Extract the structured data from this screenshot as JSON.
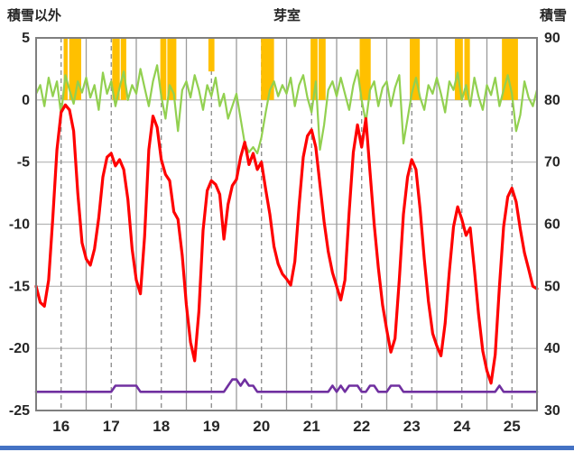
{
  "header": {
    "left_label": "積雪以外",
    "title": "芽室",
    "right_label": "積雪"
  },
  "colors": {
    "red_line": "#ff0000",
    "green_line": "#92d050",
    "purple_line": "#7030a0",
    "sunshine_bar": "#ffc000",
    "grid_h": "#b3b3b3",
    "grid_v_solid": "#9b9b9b",
    "grid_v_dashed": "#808080",
    "border": "#7f7f7f",
    "tick_text": "#262626",
    "scrollbar": "#4472c4"
  },
  "chart_data": {
    "type": "line",
    "title": "芽室",
    "x_domain": [
      16,
      26
    ],
    "x_start": 16,
    "x_step_days": 0.0833333333,
    "x_ticks": [
      16,
      17,
      18,
      19,
      20,
      21,
      22,
      23,
      24,
      25
    ],
    "left_axis": {
      "label": "積雪以外",
      "range": [
        -25,
        5
      ],
      "ticks": [
        5,
        0,
        -5,
        -10,
        -15,
        -20,
        -25
      ]
    },
    "right_axis": {
      "label": "積雪",
      "range": [
        30,
        90
      ],
      "ticks": [
        90,
        80,
        70,
        60,
        50,
        40,
        30
      ]
    },
    "grid": true,
    "legend": "none",
    "bars": {
      "name": "yellow-bars",
      "color": "#ffc000",
      "top": 5,
      "segments": [
        [
          16.55,
          16.63,
          0
        ],
        [
          16.66,
          16.9,
          0
        ],
        [
          17.52,
          17.67,
          0
        ],
        [
          17.69,
          17.8,
          0
        ],
        [
          18.48,
          18.6,
          0
        ],
        [
          18.62,
          18.8,
          0
        ],
        [
          19.44,
          19.56,
          2.3
        ],
        [
          20.49,
          20.75,
          0
        ],
        [
          21.48,
          21.62,
          0
        ],
        [
          21.64,
          21.78,
          0
        ],
        [
          22.46,
          22.68,
          0
        ],
        [
          23.46,
          23.66,
          0
        ],
        [
          24.36,
          24.52,
          0
        ],
        [
          24.55,
          24.66,
          0
        ],
        [
          25.3,
          25.62,
          0
        ]
      ]
    },
    "series": [
      {
        "name": "green-line",
        "axis": "left",
        "color": "#92d050",
        "width": 2.2,
        "values": [
          0.5,
          1.2,
          -0.5,
          1.8,
          0.3,
          1.5,
          -1.2,
          2.0,
          0.8,
          -0.3,
          1.5,
          0.6,
          1.8,
          0.2,
          1.2,
          -0.8,
          2.2,
          0.5,
          1.5,
          -0.5,
          1.0,
          2.3,
          0.0,
          1.2,
          0.5,
          2.5,
          1.0,
          -0.5,
          1.5,
          2.8,
          0.3,
          -1.5,
          1.2,
          0.5,
          -2.5,
          0.8,
          1.5,
          0.2,
          2.0,
          0.8,
          -0.8,
          1.2,
          0.3,
          1.8,
          -0.5,
          0.5,
          -1.5,
          -0.5,
          0.5,
          -1.5,
          -3.5,
          -4.2,
          -3.8,
          -4.3,
          -3.0,
          -1.0,
          0.8,
          1.5,
          0.3,
          1.2,
          0.5,
          1.8,
          -0.5,
          1.2,
          2.0,
          0.2,
          -1.0,
          1.5,
          -4.0,
          -2.0,
          0.8,
          1.5,
          0.3,
          1.8,
          0.5,
          -0.8,
          1.2,
          2.4,
          0.0,
          -1.8,
          0.8,
          1.5,
          -0.5,
          1.0,
          1.5,
          -0.5,
          1.0,
          2.0,
          -3.5,
          -1.5,
          0.5,
          1.8,
          0.2,
          -0.8,
          1.2,
          0.5,
          1.8,
          0.5,
          -1.0,
          1.5,
          0.8,
          2.2,
          0.0,
          1.2,
          -0.5,
          1.8,
          0.3,
          -0.8,
          1.2,
          0.4,
          1.8,
          -0.5,
          0.8,
          2.0,
          0.5,
          -2.5,
          -1.2,
          1.5,
          0.2,
          -0.5,
          0.8
        ]
      },
      {
        "name": "red-line",
        "axis": "left",
        "color": "#ff0000",
        "width": 3.2,
        "values": [
          -15,
          -16.3,
          -16.6,
          -14.5,
          -9.5,
          -4,
          -1,
          -0.4,
          -0.8,
          -2.5,
          -7.5,
          -11.5,
          -12.8,
          -13.3,
          -12,
          -9.5,
          -6.2,
          -4.6,
          -4.3,
          -5.3,
          -4.8,
          -5.6,
          -8,
          -12,
          -14.5,
          -15.6,
          -11,
          -4,
          -1.3,
          -2.2,
          -4.8,
          -6,
          -6.5,
          -9,
          -9.6,
          -12.5,
          -16.5,
          -19.5,
          -21,
          -17,
          -10.5,
          -7.3,
          -6.5,
          -6.8,
          -7.6,
          -11.2,
          -8.4,
          -6.9,
          -6.4,
          -4.6,
          -3.4,
          -5.2,
          -4.3,
          -5.6,
          -5,
          -7.2,
          -9.2,
          -11.8,
          -13.2,
          -14,
          -14.4,
          -14.9,
          -13,
          -8.5,
          -4.6,
          -2.9,
          -2.4,
          -3.8,
          -6.8,
          -9.8,
          -12.2,
          -13.9,
          -15,
          -16.1,
          -14.5,
          -9,
          -4.2,
          -2,
          -3.8,
          -1.5,
          -5.8,
          -10,
          -13.5,
          -16.5,
          -18.5,
          -20.3,
          -19.2,
          -14.5,
          -9.2,
          -6.2,
          -4.8,
          -5.6,
          -8.8,
          -12.8,
          -16.2,
          -18.8,
          -19.8,
          -20.6,
          -18,
          -13.8,
          -10.2,
          -8.6,
          -9.6,
          -10.9,
          -10.3,
          -13.6,
          -17.2,
          -20.2,
          -21.8,
          -22.8,
          -20.5,
          -15,
          -10.2,
          -7.8,
          -7.1,
          -8.2,
          -10.4,
          -12.3,
          -13.6,
          -15,
          -15.2
        ]
      },
      {
        "name": "purple-line",
        "axis": "right",
        "color": "#7030a0",
        "width": 2.6,
        "values": [
          33,
          33,
          33,
          33,
          33,
          33,
          33,
          33,
          33,
          33,
          33,
          33,
          33,
          33,
          33,
          33,
          33,
          33,
          33,
          34,
          34,
          34,
          34,
          34,
          34,
          33,
          33,
          33,
          33,
          33,
          33,
          33,
          33,
          33,
          33,
          33,
          33,
          33,
          33,
          33,
          33,
          33,
          33,
          33,
          33,
          33,
          34,
          35,
          35,
          34,
          35,
          34,
          34,
          33,
          33,
          33,
          33,
          33,
          33,
          33,
          33,
          33,
          33,
          33,
          33,
          33,
          33,
          33,
          33,
          33,
          33,
          34,
          33,
          34,
          33,
          34,
          34,
          34,
          33,
          33,
          34,
          34,
          33,
          33,
          33,
          34,
          34,
          34,
          33,
          33,
          33,
          33,
          33,
          33,
          33,
          33,
          33,
          33,
          33,
          33,
          33,
          33,
          33,
          33,
          33,
          33,
          33,
          33,
          33,
          33,
          33,
          34,
          33,
          33,
          33,
          33,
          33,
          33,
          33,
          33,
          33
        ]
      }
    ]
  }
}
